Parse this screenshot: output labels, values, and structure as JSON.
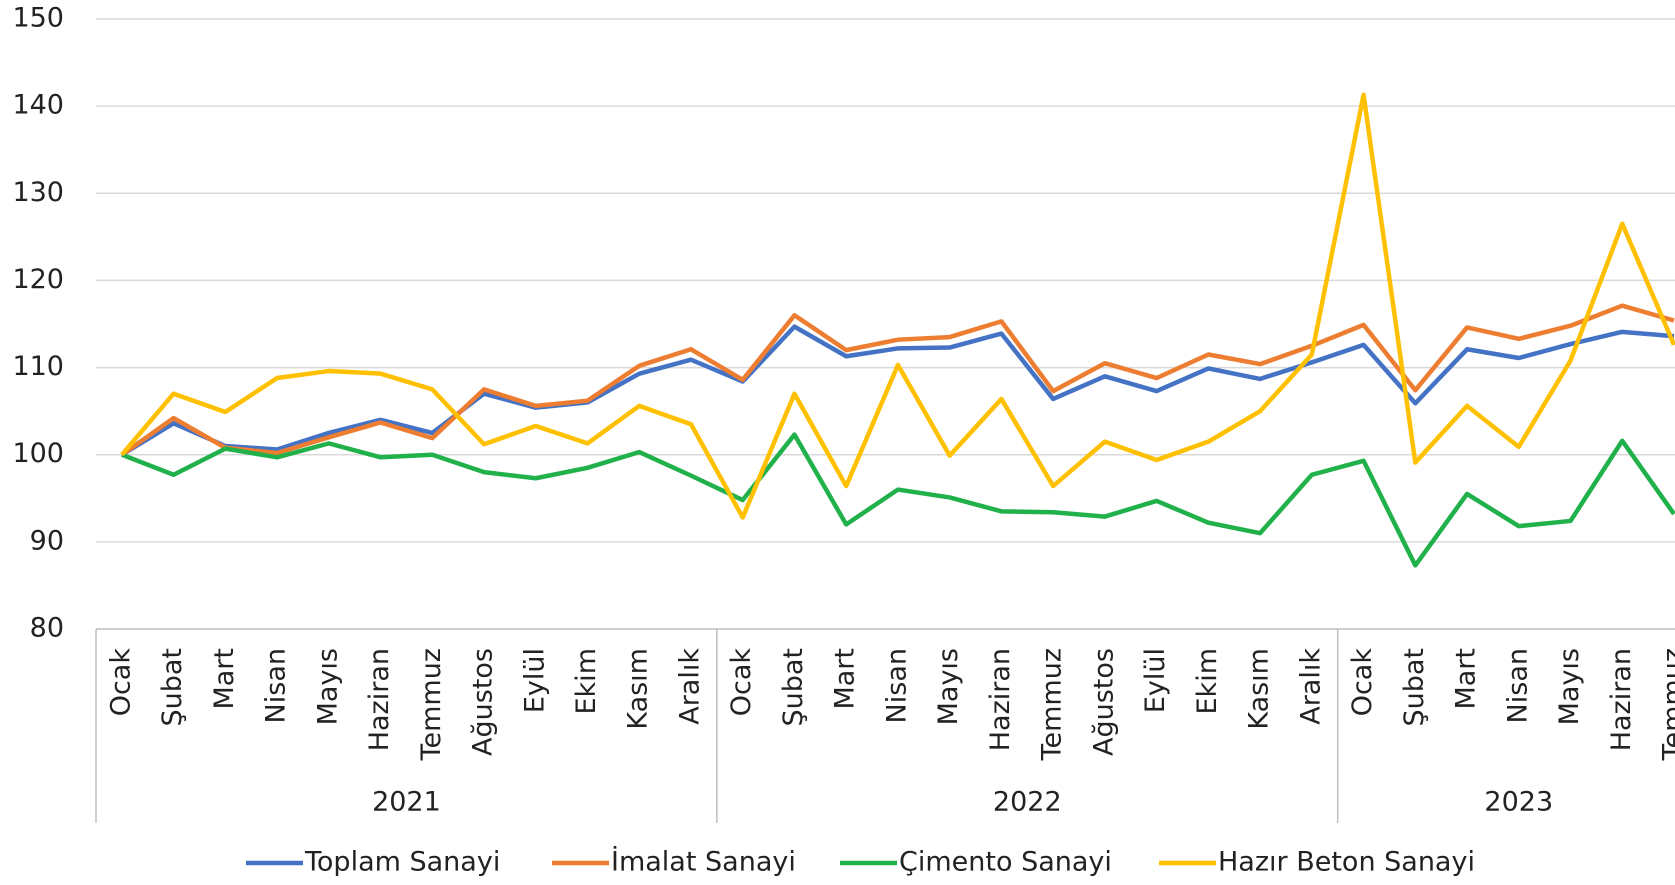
{
  "chart_data": {
    "type": "line",
    "categories": [
      "Ocak",
      "Şubat",
      "Mart",
      "Nisan",
      "Mayıs",
      "Haziran",
      "Temmuz",
      "Ağustos",
      "Eylül",
      "Ekim",
      "Kasım",
      "Aralık",
      "Ocak",
      "Şubat",
      "Mart",
      "Nisan",
      "Mayıs",
      "Haziran",
      "Temmuz",
      "Ağustos",
      "Eylül",
      "Ekim",
      "Kasım",
      "Aralık",
      "Ocak",
      "Şubat",
      "Mart",
      "Nisan",
      "Mayıs",
      "Haziran",
      "Temmuz"
    ],
    "groups": [
      "2021",
      "2022",
      "2023"
    ],
    "series": [
      {
        "name": "Toplam Sanayi",
        "color": "#4472c4",
        "values": [
          100,
          103.6,
          101,
          100.6,
          102.5,
          104,
          102.5,
          107,
          105.4,
          106,
          109.3,
          110.9,
          108.4,
          114.7,
          111.3,
          112.2,
          112.3,
          113.9,
          106.4,
          109,
          107.3,
          109.9,
          108.7,
          110.6,
          112.6,
          105.9,
          112.1,
          111.1,
          112.7,
          114.1,
          113.6
        ]
      },
      {
        "name": "İmalat Sanayi",
        "color": "#ed7d31",
        "values": [
          100,
          104.2,
          100.8,
          100.2,
          102,
          103.7,
          101.9,
          107.5,
          105.6,
          106.2,
          110.2,
          112.1,
          108.6,
          116,
          112,
          113.2,
          113.5,
          115.3,
          107.3,
          110.5,
          108.8,
          111.5,
          110.4,
          112.5,
          114.9,
          107.4,
          114.6,
          113.3,
          114.8,
          117.1,
          115.4
        ]
      },
      {
        "name": "Çimento Sanayi",
        "color": "#21b14b",
        "values": [
          100,
          97.7,
          100.7,
          99.7,
          101.3,
          99.7,
          100,
          98,
          97.3,
          98.5,
          100.3,
          97.6,
          94.8,
          102.3,
          92,
          96,
          95.1,
          93.5,
          93.4,
          92.9,
          94.7,
          92.2,
          91,
          97.7,
          99.3,
          87.3,
          95.5,
          91.8,
          92.4,
          101.6,
          93.2
        ]
      },
      {
        "name": "Hazır Beton Sanayi",
        "color": "#ffc000",
        "values": [
          100,
          107,
          104.9,
          108.8,
          109.6,
          109.3,
          107.5,
          101.2,
          103.3,
          101.3,
          105.6,
          103.5,
          92.8,
          107,
          96.4,
          110.3,
          99.9,
          106.4,
          96.4,
          101.5,
          99.4,
          101.5,
          105,
          111.5,
          141.3,
          99.1,
          105.6,
          100.9,
          110.8,
          126.5,
          112.6
        ]
      }
    ],
    "ylim": [
      80,
      150
    ],
    "yticks": [
      80,
      90,
      100,
      110,
      120,
      130,
      140,
      150
    ],
    "grid": true,
    "legend": "bottom"
  }
}
